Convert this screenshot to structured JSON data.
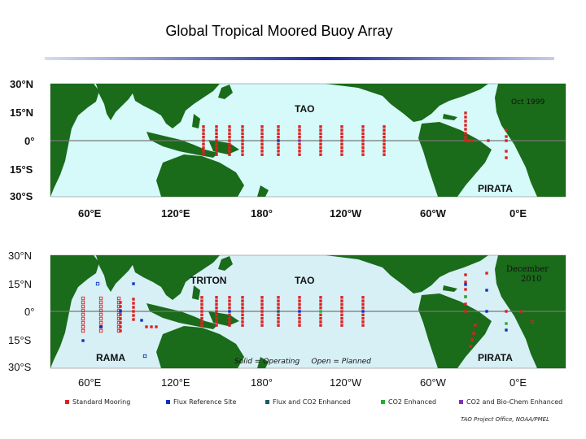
{
  "title": "Global Tropical Moored Buoy Array",
  "top_map": {
    "lat_labels": [
      "30°N",
      "15°N",
      "0°",
      "15°S",
      "30°S"
    ],
    "lon_labels": [
      "60°E",
      "120°E",
      "180°",
      "120°W",
      "60°W",
      "0°E"
    ],
    "date": "Oct 1999",
    "region_labels": {
      "tao": "TAO",
      "pirata": "PIRATA"
    }
  },
  "bottom_map": {
    "lat_labels": [
      "30°N",
      "15°N",
      "0°",
      "15°S",
      "30°S"
    ],
    "lon_labels": [
      "60°E",
      "120°E",
      "180°",
      "120°W",
      "60°W",
      "0°E"
    ],
    "date_line1": "December",
    "date_line2": "2010",
    "region_labels": {
      "triton": "TRITON",
      "tao": "TAO",
      "rama": "RAMA",
      "pirata": "PIRATA"
    },
    "status_note": "Solid = Operating     Open = Planned"
  },
  "legend": [
    {
      "label": "Standard Mooring",
      "color": "#e02020"
    },
    {
      "label": "Flux Reference Site",
      "color": "#1030c0"
    },
    {
      "label": "Flux and CO2 Enhanced",
      "color": "#1a5a6a"
    },
    {
      "label": "CO2 Enhanced",
      "color": "#20b030"
    },
    {
      "label": "CO2 and Bio-Chem Enhanced",
      "color": "#8030c0"
    }
  ],
  "credit": "TAO Project Office, NOAA/PMEL",
  "colors": {
    "ocean_top": "#d6fafa",
    "ocean_bottom": "#d6f0f6",
    "land": "#1a6b1a",
    "equator": "#777777"
  }
}
